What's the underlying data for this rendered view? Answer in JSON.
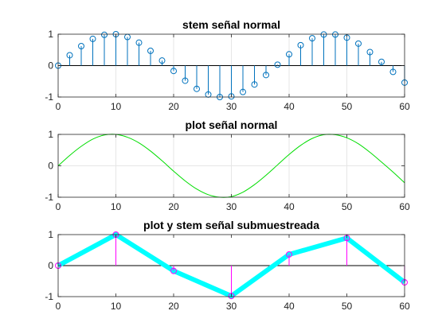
{
  "chart_data": [
    {
      "type": "stem",
      "title": "stem señal normal",
      "xlim": [
        0,
        60
      ],
      "ylim": [
        -1,
        1
      ],
      "xticks": [
        0,
        10,
        20,
        30,
        40,
        50,
        60
      ],
      "yticks": [
        -1,
        0,
        1
      ],
      "grid": true,
      "series": [
        {
          "style": "stem",
          "color": "#0072BD",
          "x": [
            0,
            2,
            4,
            6,
            8,
            10,
            12,
            14,
            16,
            18,
            20,
            22,
            24,
            26,
            28,
            30,
            32,
            34,
            36,
            38,
            40,
            42,
            44,
            46,
            48,
            50,
            52,
            54,
            56,
            58,
            60
          ],
          "y": [
            0,
            0.33,
            0.62,
            0.85,
            0.98,
            1.0,
            0.91,
            0.73,
            0.47,
            0.16,
            -0.17,
            -0.48,
            -0.74,
            -0.92,
            -1.0,
            -0.98,
            -0.84,
            -0.6,
            -0.3,
            0.03,
            0.36,
            0.65,
            0.87,
            0.99,
            0.99,
            0.89,
            0.7,
            0.43,
            0.12,
            -0.2,
            -0.54
          ]
        }
      ]
    },
    {
      "type": "line",
      "title": "plot señal normal",
      "xlim": [
        0,
        60
      ],
      "ylim": [
        -1,
        1
      ],
      "xticks": [
        0,
        10,
        20,
        30,
        40,
        50,
        60
      ],
      "yticks": [
        -1,
        0,
        1
      ],
      "grid": true,
      "series": [
        {
          "style": "line",
          "color": "#00DD00",
          "x": [
            0,
            2,
            4,
            6,
            8,
            10,
            12,
            14,
            16,
            18,
            20,
            22,
            24,
            26,
            28,
            30,
            32,
            34,
            36,
            38,
            40,
            42,
            44,
            46,
            48,
            50,
            52,
            54,
            56,
            58,
            60
          ],
          "y": [
            0,
            0.33,
            0.62,
            0.85,
            0.98,
            1.0,
            0.91,
            0.73,
            0.47,
            0.16,
            -0.17,
            -0.48,
            -0.74,
            -0.92,
            -1.0,
            -0.98,
            -0.84,
            -0.6,
            -0.3,
            0.03,
            0.36,
            0.65,
            0.87,
            0.99,
            0.99,
            0.89,
            0.7,
            0.43,
            0.12,
            -0.2,
            -0.54
          ]
        }
      ]
    },
    {
      "type": "line",
      "title": "plot y stem señal submuestreada",
      "xlim": [
        0,
        60
      ],
      "ylim": [
        -1,
        1
      ],
      "xticks": [
        0,
        10,
        20,
        30,
        40,
        50,
        60
      ],
      "yticks": [
        -1,
        0,
        1
      ],
      "grid": false,
      "series": [
        {
          "style": "thick-line",
          "color": "#00FFFF",
          "x": [
            0,
            10,
            20,
            30,
            40,
            50,
            60
          ],
          "y": [
            0,
            1.0,
            -0.17,
            -0.98,
            0.36,
            0.89,
            -0.54
          ]
        },
        {
          "style": "stem",
          "color": "#FF00FF",
          "x": [
            0,
            10,
            20,
            30,
            40,
            50,
            60
          ],
          "y": [
            0,
            1.0,
            -0.17,
            -0.98,
            0.36,
            0.89,
            -0.54
          ]
        }
      ]
    }
  ]
}
